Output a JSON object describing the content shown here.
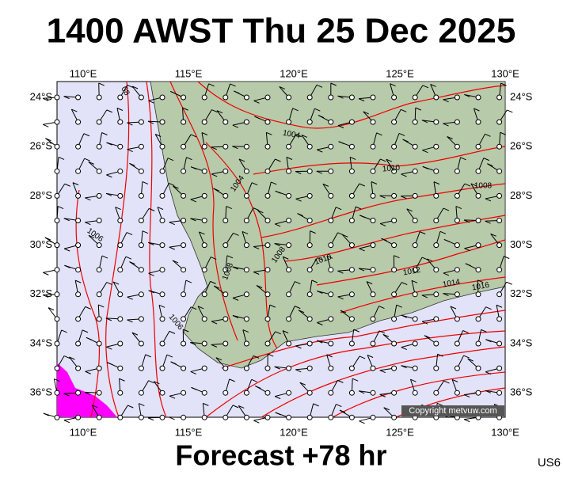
{
  "title": "1400 AWST Thu 25 Dec 2025",
  "footer": "Forecast +78 hr",
  "code": "US6",
  "copyright": "Copyright metvuw.com",
  "lon_labels": [
    "110°E",
    "115°E",
    "120°E",
    "125°E",
    "130°E"
  ],
  "lat_labels": [
    "24°S",
    "26°S",
    "28°S",
    "30°S",
    "32°S",
    "34°S",
    "36°S"
  ],
  "isobar_labels": [
    "08",
    "1004",
    "1004",
    "1006",
    "1008",
    "1008",
    "1010",
    "1010",
    "1008",
    "1012",
    "1014",
    "1016",
    "1006"
  ]
}
